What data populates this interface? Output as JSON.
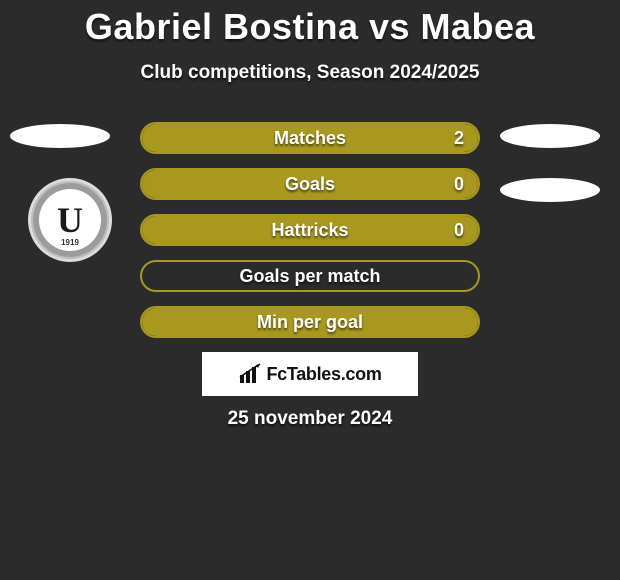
{
  "title": "Gabriel Bostina vs Mabea",
  "subtitle": "Club competitions, Season 2024/2025",
  "crest": {
    "letter": "U",
    "year": "1919"
  },
  "colors": {
    "background": "#2b2b2b",
    "bar_border": "#a89820",
    "bar_fill": "#a89820",
    "badge_bg": "#ffffff",
    "text": "#ffffff"
  },
  "bars": [
    {
      "label": "Matches",
      "value": "2",
      "fill_pct": 100,
      "show_value": true
    },
    {
      "label": "Goals",
      "value": "0",
      "fill_pct": 100,
      "show_value": true
    },
    {
      "label": "Hattricks",
      "value": "0",
      "fill_pct": 100,
      "show_value": true
    },
    {
      "label": "Goals per match",
      "value": "",
      "fill_pct": 0,
      "show_value": false
    },
    {
      "label": "Min per goal",
      "value": "",
      "fill_pct": 100,
      "show_value": false
    }
  ],
  "badge_text": "FcTables.com",
  "date": "25 november 2024"
}
